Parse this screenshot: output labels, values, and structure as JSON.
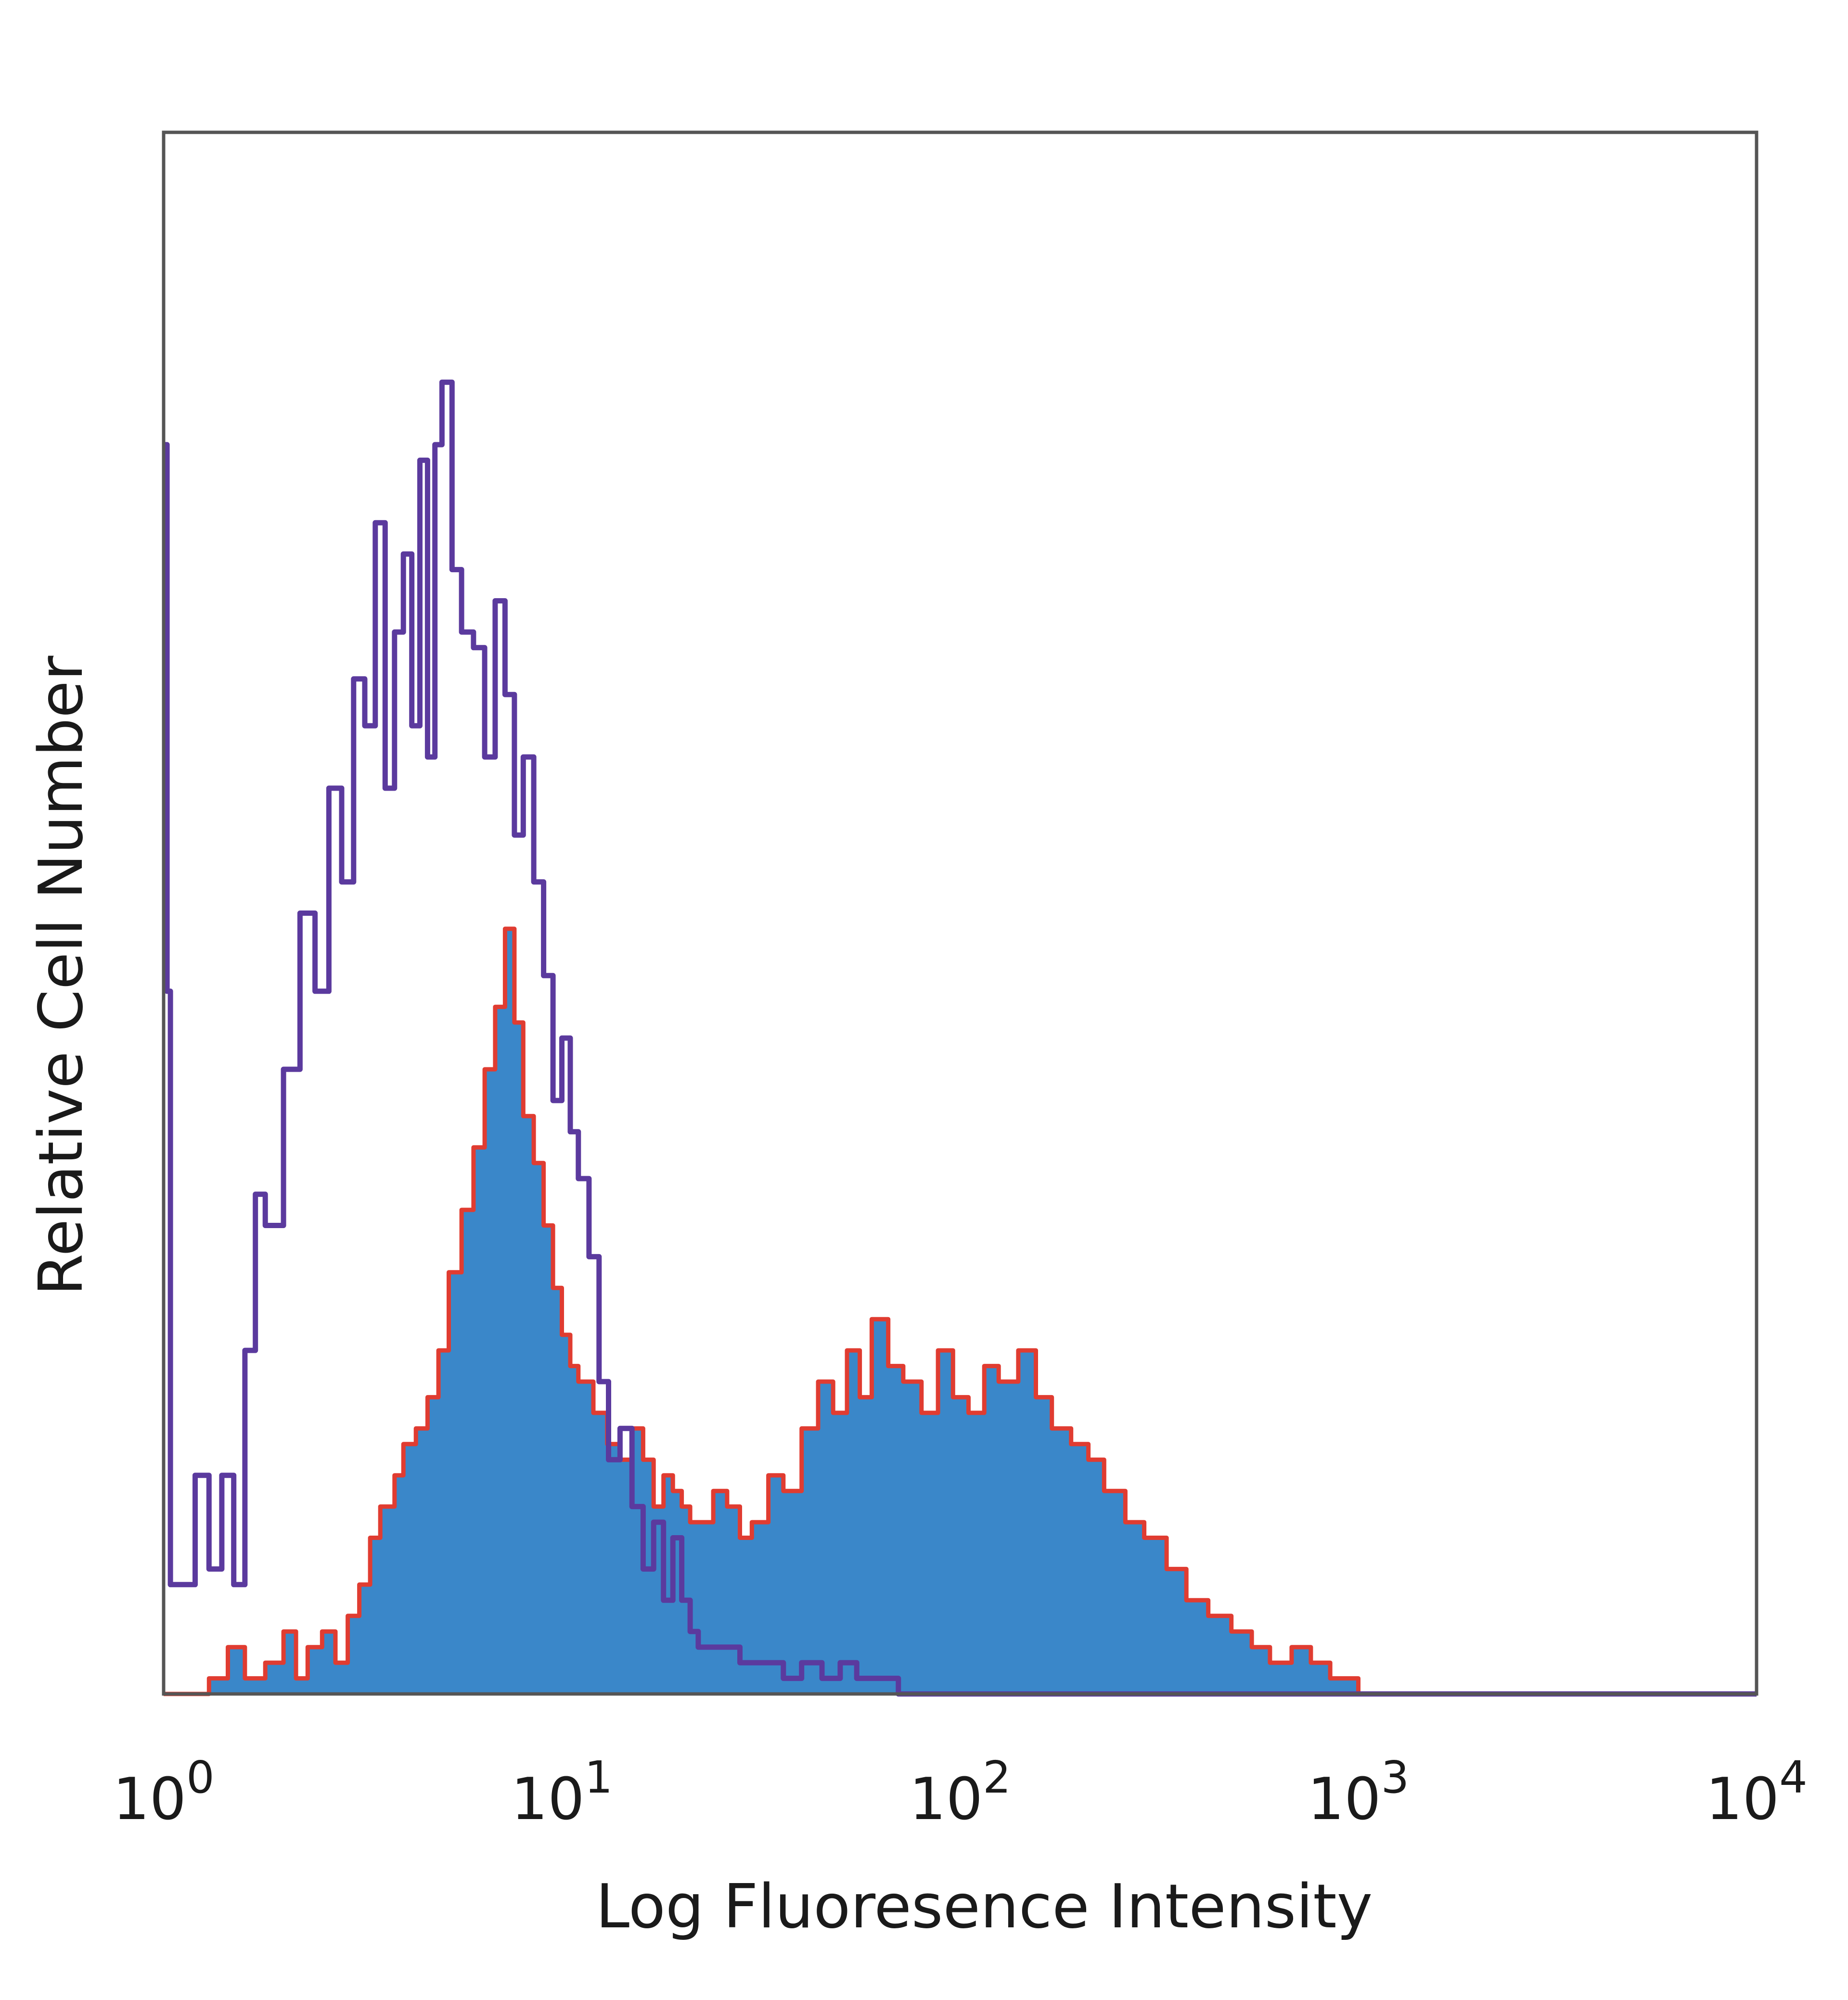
{
  "chart_data": {
    "type": "area",
    "xlabel": "Log Fluoresence Intensity",
    "ylabel": "Relative Cell Number",
    "xscale": "log",
    "xlim": [
      1,
      10000
    ],
    "ylim": [
      0,
      100
    ],
    "x_ticks": [
      {
        "base": "10",
        "exp": "0",
        "value": 1
      },
      {
        "base": "10",
        "exp": "1",
        "value": 10
      },
      {
        "base": "10",
        "exp": "2",
        "value": 100
      },
      {
        "base": "10",
        "exp": "3",
        "value": 1000
      },
      {
        "base": "10",
        "exp": "4",
        "value": 10000
      }
    ],
    "grid": false,
    "legend": "none",
    "series": [
      {
        "style": "outline",
        "color": "#5b3a9e",
        "x": [
          1.0,
          1.02,
          1.04,
          1.2,
          1.3,
          1.4,
          1.5,
          1.6,
          1.7,
          1.8,
          2.0,
          2.2,
          2.4,
          2.6,
          2.8,
          3.0,
          3.2,
          3.4,
          3.6,
          3.8,
          4.0,
          4.2,
          4.4,
          4.6,
          4.8,
          5.0,
          5.3,
          5.6,
          6.0,
          6.4,
          6.8,
          7.2,
          7.6,
          8.0,
          8.5,
          9.0,
          9.5,
          10.0,
          10.5,
          11.0,
          11.7,
          12.4,
          13.1,
          14.0,
          15.0,
          16.0,
          17.0,
          18.0,
          19.0,
          20.0,
          21.0,
          22.0,
          24.0,
          26.0,
          28.0,
          30.0,
          33.0,
          36.0,
          40.0,
          45.0,
          50.0,
          55.0,
          60.0,
          70.0,
          100.0,
          200.0,
          500.0,
          1000.0,
          10000.0
        ],
        "y": [
          80,
          45,
          7,
          14,
          8,
          14,
          7,
          22,
          32,
          30,
          40,
          50,
          45,
          58,
          52,
          65,
          62,
          75,
          58,
          68,
          73,
          62,
          79,
          60,
          80,
          84,
          72,
          68,
          67,
          60,
          70,
          64,
          55,
          60,
          52,
          46,
          38,
          42,
          36,
          33,
          28,
          20,
          15,
          17,
          12,
          8,
          11,
          6,
          10,
          6,
          4,
          3,
          3,
          3,
          2,
          2,
          2,
          1,
          2,
          1,
          2,
          1,
          1,
          0,
          0,
          0,
          0,
          0,
          0
        ]
      },
      {
        "style": "filled",
        "color": "#3a87c9",
        "edge_color": "#e03c31",
        "x": [
          1.0,
          1.3,
          1.45,
          1.6,
          1.8,
          2.0,
          2.15,
          2.3,
          2.5,
          2.7,
          2.9,
          3.1,
          3.3,
          3.5,
          3.8,
          4.0,
          4.3,
          4.6,
          4.9,
          5.2,
          5.6,
          6.0,
          6.4,
          6.8,
          7.2,
          7.6,
          8.0,
          8.5,
          9.0,
          9.5,
          10.0,
          10.5,
          11.0,
          12.0,
          13.0,
          14.0,
          15.0,
          16.0,
          17.0,
          18.0,
          19.0,
          20.0,
          21.0,
          22.0,
          24.0,
          26.0,
          28.0,
          30.0,
          33.0,
          36.0,
          40.0,
          44.0,
          48.0,
          52.0,
          56.0,
          60.0,
          66.0,
          72.0,
          80.0,
          88.0,
          96.0,
          105.0,
          115.0,
          125.0,
          140.0,
          155.0,
          170.0,
          190.0,
          210.0,
          230.0,
          260.0,
          290.0,
          330.0,
          370.0,
          420.0,
          480.0,
          540.0,
          600.0,
          680.0,
          760.0,
          850.0,
          1000.0,
          10000.0
        ],
        "y": [
          0,
          1,
          3,
          1,
          2,
          4,
          1,
          3,
          4,
          2,
          5,
          7,
          10,
          12,
          14,
          16,
          17,
          19,
          22,
          27,
          31,
          35,
          40,
          44,
          49,
          43,
          37,
          34,
          30,
          26,
          23,
          21,
          20,
          18,
          16,
          15,
          17,
          15,
          12,
          14,
          13,
          12,
          11,
          11,
          13,
          12,
          10,
          11,
          14,
          13,
          17,
          20,
          18,
          22,
          19,
          24,
          21,
          20,
          18,
          22,
          19,
          18,
          21,
          20,
          22,
          19,
          17,
          16,
          15,
          13,
          11,
          10,
          8,
          6,
          5,
          4,
          3,
          2,
          3,
          2,
          1,
          0,
          0
        ]
      }
    ]
  }
}
